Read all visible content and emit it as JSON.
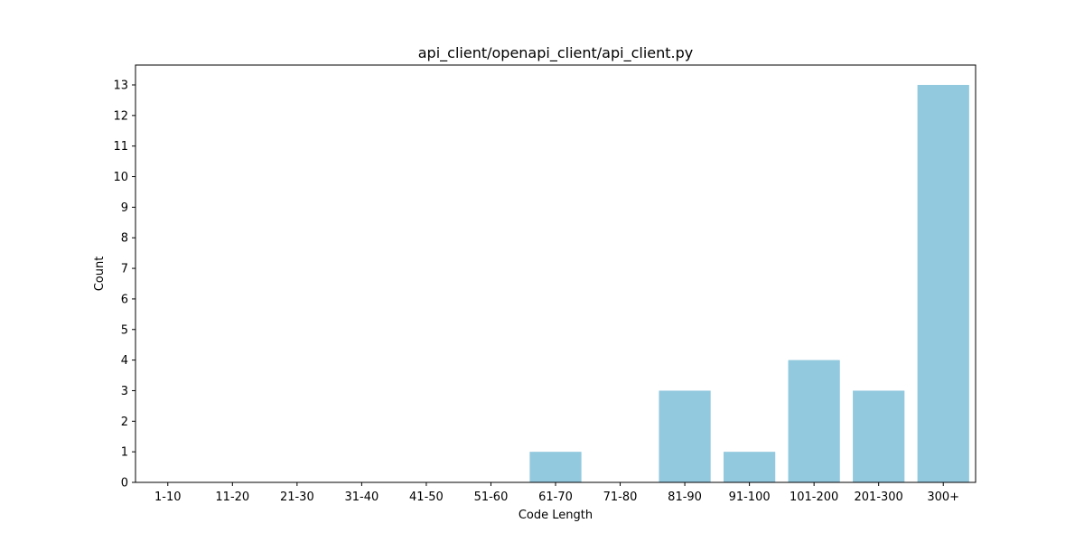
{
  "chart_data": {
    "type": "bar",
    "title": "api_client/openapi_client/api_client.py",
    "xlabel": "Code Length",
    "ylabel": "Count",
    "categories": [
      "1-10",
      "11-20",
      "21-30",
      "31-40",
      "41-50",
      "51-60",
      "61-70",
      "71-80",
      "81-90",
      "91-100",
      "101-200",
      "201-300",
      "300+"
    ],
    "values": [
      0,
      0,
      0,
      0,
      0,
      0,
      1,
      0,
      3,
      1,
      4,
      3,
      13
    ],
    "ylim": [
      0,
      13.65
    ],
    "yticks": [
      0,
      1,
      2,
      3,
      4,
      5,
      6,
      7,
      8,
      9,
      10,
      11,
      12,
      13
    ],
    "grid": false,
    "bar_color": "#92c9de"
  }
}
